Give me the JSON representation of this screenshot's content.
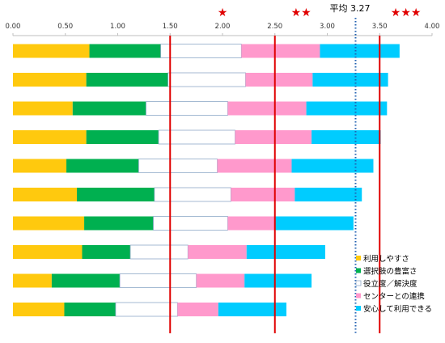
{
  "chart_data": {
    "type": "bar",
    "orientation": "horizontal",
    "stacked": true,
    "xlim": [
      0,
      4
    ],
    "x_ticks": [
      "0.00",
      "0.50",
      "1.00",
      "1.50",
      "2.00",
      "2.50",
      "3.00",
      "3.50",
      "4.00"
    ],
    "grid": false,
    "legend_position": "bottom-right",
    "series": [
      {
        "name": "利用しやすさ",
        "color": "#FFC90E",
        "values": [
          0.73,
          0.7,
          0.57,
          0.7,
          0.51,
          0.61,
          0.68,
          0.66,
          0.37,
          0.49
        ]
      },
      {
        "name": "選択肢の豊富さ",
        "color": "#00B050",
        "values": [
          0.68,
          0.78,
          0.7,
          0.69,
          0.69,
          0.74,
          0.66,
          0.46,
          0.65,
          0.49
        ]
      },
      {
        "name": "役立度／解決度",
        "color": "#FFFFFF",
        "values": [
          0.77,
          0.74,
          0.78,
          0.73,
          0.75,
          0.73,
          0.71,
          0.55,
          0.73,
          0.59
        ]
      },
      {
        "name": "センターとの連携",
        "color": "#FF99CC",
        "values": [
          0.75,
          0.64,
          0.75,
          0.73,
          0.71,
          0.61,
          0.45,
          0.56,
          0.46,
          0.39
        ]
      },
      {
        "name": "安心して利用できる",
        "color": "#00CCFF",
        "values": [
          0.76,
          0.72,
          0.77,
          0.66,
          0.78,
          0.64,
          0.75,
          0.75,
          0.64,
          0.65
        ]
      }
    ],
    "reference_lines": [
      {
        "value": 1.5,
        "style": "solid",
        "color": "#E00000"
      },
      {
        "value": 2.5,
        "style": "solid",
        "color": "#E00000"
      },
      {
        "value": 3.5,
        "style": "solid",
        "color": "#E00000"
      },
      {
        "value": 3.27,
        "style": "dotted",
        "color": "#1F5FB0"
      }
    ],
    "annotations": [
      {
        "text": "★",
        "x": 2.0,
        "color": "#E00000"
      },
      {
        "text": "★★",
        "x": 2.75,
        "color": "#E00000"
      },
      {
        "text": "★★★",
        "x": 3.75,
        "color": "#E00000"
      },
      {
        "text": "平均 3.27",
        "x": 3.27,
        "color": "#000000"
      }
    ]
  }
}
